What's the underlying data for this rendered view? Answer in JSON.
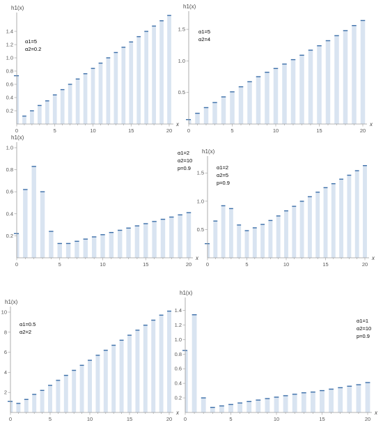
{
  "colors": {
    "bar": "#d9e4f1",
    "cap": "#3b6ea8",
    "axis": "#9a9a9a"
  },
  "chart_data": [
    {
      "type": "bar",
      "xlabel": "x",
      "ylabel": "h1(x)",
      "xlim": [
        0,
        20
      ],
      "ylim": [
        0,
        1.6
      ],
      "xticks": [
        0,
        5,
        10,
        15,
        20
      ],
      "yticks": [
        0.2,
        0.4,
        0.6,
        0.8,
        1.0,
        1.2,
        1.4
      ],
      "annotations": [
        "α1=5",
        "α2=0.2"
      ],
      "x": [
        0,
        1,
        2,
        3,
        4,
        5,
        6,
        7,
        8,
        9,
        10,
        11,
        12,
        13,
        14,
        15,
        16,
        17,
        18,
        19,
        20
      ],
      "values": [
        0.73,
        0.12,
        0.2,
        0.28,
        0.35,
        0.44,
        0.52,
        0.6,
        0.68,
        0.76,
        0.84,
        0.92,
        1.0,
        1.08,
        1.16,
        1.24,
        1.32,
        1.4,
        1.48,
        1.56,
        1.64
      ]
    },
    {
      "type": "bar",
      "xlabel": "x",
      "ylabel": "h1(x)",
      "xlim": [
        0,
        20
      ],
      "ylim": [
        0,
        1.7
      ],
      "xticks": [
        0,
        5,
        10,
        15,
        20
      ],
      "yticks": [
        0.5,
        1.0,
        1.5
      ],
      "annotations": [
        "α1=5",
        "α2=4"
      ],
      "x": [
        0,
        1,
        2,
        3,
        4,
        5,
        6,
        7,
        8,
        9,
        10,
        11,
        12,
        13,
        14,
        15,
        16,
        17,
        18,
        19,
        20
      ],
      "values": [
        0.07,
        0.17,
        0.26,
        0.34,
        0.43,
        0.51,
        0.59,
        0.67,
        0.75,
        0.82,
        0.88,
        0.95,
        1.02,
        1.09,
        1.17,
        1.24,
        1.32,
        1.4,
        1.48,
        1.56,
        1.64
      ]
    },
    {
      "type": "bar",
      "xlabel": "x",
      "ylabel": "h1(x)",
      "xlim": [
        0,
        20
      ],
      "ylim": [
        0,
        1.0
      ],
      "xticks": [
        0,
        5,
        10,
        15,
        20
      ],
      "yticks": [
        0.2,
        0.4,
        0.6,
        0.8,
        1.0
      ],
      "annotations": [
        "α1=2",
        "α2=10",
        "p=0.9"
      ],
      "x": [
        0,
        1,
        2,
        3,
        4,
        5,
        6,
        7,
        8,
        9,
        10,
        11,
        12,
        13,
        14,
        15,
        16,
        17,
        18,
        19,
        20
      ],
      "values": [
        0.22,
        0.62,
        0.83,
        0.6,
        0.24,
        0.13,
        0.13,
        0.15,
        0.17,
        0.19,
        0.21,
        0.23,
        0.25,
        0.27,
        0.29,
        0.31,
        0.33,
        0.35,
        0.37,
        0.39,
        0.41
      ]
    },
    {
      "type": "bar",
      "xlabel": "x",
      "ylabel": "h1(x)",
      "xlim": [
        0,
        20
      ],
      "ylim": [
        0,
        1.7
      ],
      "xticks": [
        0,
        5,
        10,
        15,
        20
      ],
      "yticks": [
        0.5,
        1.0,
        1.5
      ],
      "annotations": [
        "α1=2",
        "α2=5",
        "p=0.9"
      ],
      "x": [
        0,
        1,
        2,
        3,
        4,
        5,
        6,
        7,
        8,
        9,
        10,
        11,
        12,
        13,
        14,
        15,
        16,
        17,
        18,
        19,
        20
      ],
      "values": [
        0.25,
        0.65,
        0.92,
        0.87,
        0.58,
        0.48,
        0.53,
        0.59,
        0.66,
        0.74,
        0.83,
        0.91,
        1.0,
        1.08,
        1.16,
        1.24,
        1.31,
        1.39,
        1.46,
        1.54,
        1.63
      ]
    },
    {
      "type": "bar",
      "xlabel": "x",
      "ylabel": "h1(x)",
      "xlim": [
        0,
        20
      ],
      "ylim": [
        0,
        10
      ],
      "xticks": [
        0,
        5,
        10,
        15,
        20
      ],
      "yticks": [
        2,
        4,
        6,
        8,
        10
      ],
      "annotations": [
        "α1=0.5",
        "α2=2"
      ],
      "x": [
        0,
        1,
        2,
        3,
        4,
        5,
        6,
        7,
        8,
        9,
        10,
        11,
        12,
        13,
        14,
        15,
        16,
        17,
        18,
        19,
        20
      ],
      "values": [
        1.1,
        0.9,
        1.3,
        1.8,
        2.2,
        2.7,
        3.2,
        3.7,
        4.2,
        4.7,
        5.2,
        5.7,
        6.2,
        6.7,
        7.2,
        7.7,
        8.2,
        8.7,
        9.2,
        9.7,
        10.1
      ]
    },
    {
      "type": "bar",
      "xlabel": "x",
      "ylabel": "h1(x)",
      "xlim": [
        0,
        20
      ],
      "ylim": [
        0,
        1.5
      ],
      "xticks": [
        0,
        5,
        10,
        15,
        20
      ],
      "yticks": [
        0.2,
        0.4,
        0.6,
        0.8,
        1.0,
        1.2,
        1.4
      ],
      "annotations": [
        "α1=1",
        "α2=10",
        "p=0.9"
      ],
      "x": [
        0,
        1,
        2,
        3,
        4,
        5,
        6,
        7,
        8,
        9,
        10,
        11,
        12,
        13,
        14,
        15,
        16,
        17,
        18,
        19,
        20
      ],
      "values": [
        0.85,
        1.34,
        0.2,
        0.07,
        0.09,
        0.11,
        0.13,
        0.15,
        0.17,
        0.19,
        0.21,
        0.23,
        0.25,
        0.27,
        0.28,
        0.3,
        0.32,
        0.34,
        0.36,
        0.38,
        0.41
      ]
    }
  ]
}
